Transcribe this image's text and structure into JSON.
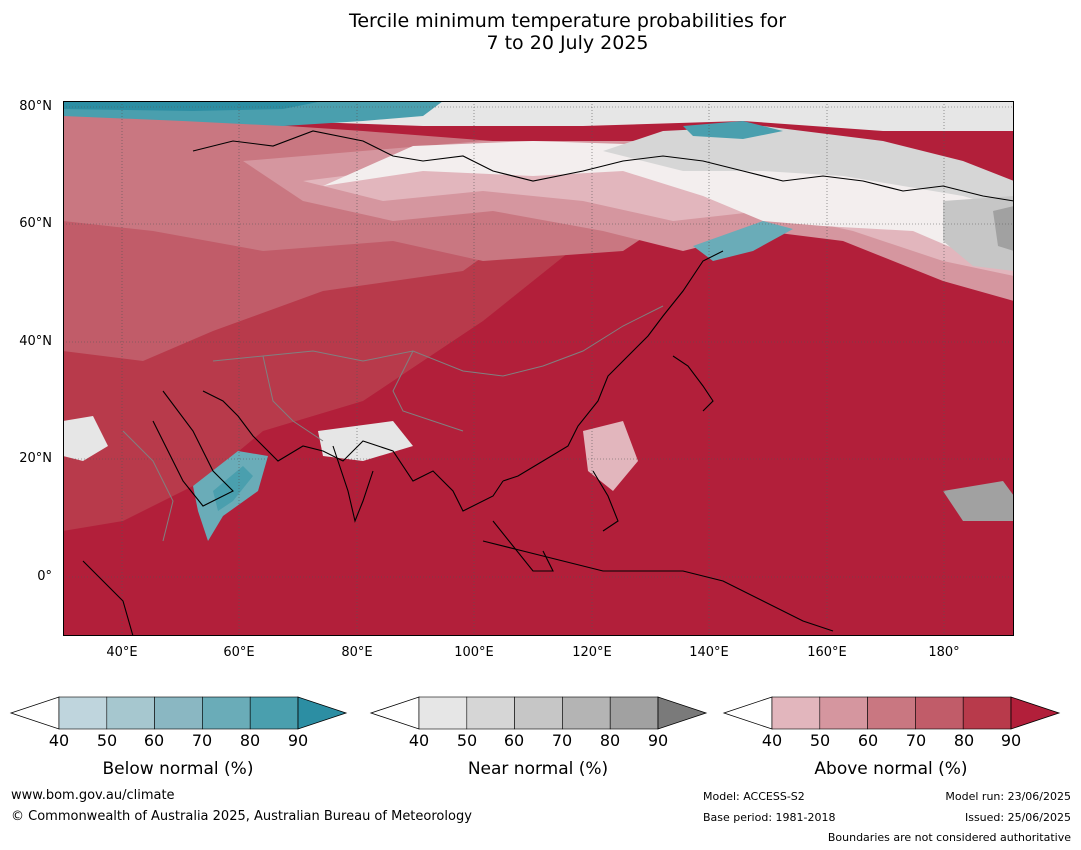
{
  "title": {
    "line1": "Tercile minimum temperature probabilities for",
    "line2": "7 to 20 July 2025"
  },
  "map": {
    "lat_labels": [
      "80°N",
      "60°N",
      "40°N",
      "20°N",
      "0°"
    ],
    "lon_labels": [
      "40°E",
      "60°E",
      "80°E",
      "100°E",
      "120°E",
      "140°E",
      "160°E",
      "180°"
    ],
    "extent": {
      "lon_min": 30,
      "lon_max": 192,
      "lat_min": -10,
      "lat_max": 81
    },
    "gridlines": true,
    "dominant_category": "Above normal"
  },
  "colorbars": [
    {
      "label": "Below normal (%)",
      "ticks": [
        "40",
        "50",
        "60",
        "70",
        "80",
        "90"
      ],
      "colors": [
        "#ffffff",
        "#bfd5dd",
        "#a6c7cf",
        "#8ab7c2",
        "#6aacb8",
        "#4a9fae",
        "#2c8ea3"
      ]
    },
    {
      "label": "Near normal (%)",
      "ticks": [
        "40",
        "50",
        "60",
        "70",
        "80",
        "90"
      ],
      "colors": [
        "#ffffff",
        "#e6e6e6",
        "#d6d6d6",
        "#c6c6c6",
        "#b4b4b4",
        "#a1a1a1",
        "#7a7a7a"
      ]
    },
    {
      "label": "Above normal (%)",
      "ticks": [
        "40",
        "50",
        "60",
        "70",
        "80",
        "90"
      ],
      "colors": [
        "#ffffff",
        "#e2b6bd",
        "#d5969f",
        "#c97781",
        "#c15c69",
        "#b83a4b",
        "#b21f3a"
      ]
    }
  ],
  "footer": {
    "website": "www.bom.gov.au/climate",
    "copyright": "© Commonwealth of Australia 2025, Australian Bureau of Meteorology",
    "model": "Model: ACCESS-S2",
    "base_period": "Base period: 1981-2018",
    "model_run": "Model run: 23/06/2025",
    "issued": "Issued: 25/06/2025",
    "disclaimer": "Boundaries are not considered authoritative"
  }
}
